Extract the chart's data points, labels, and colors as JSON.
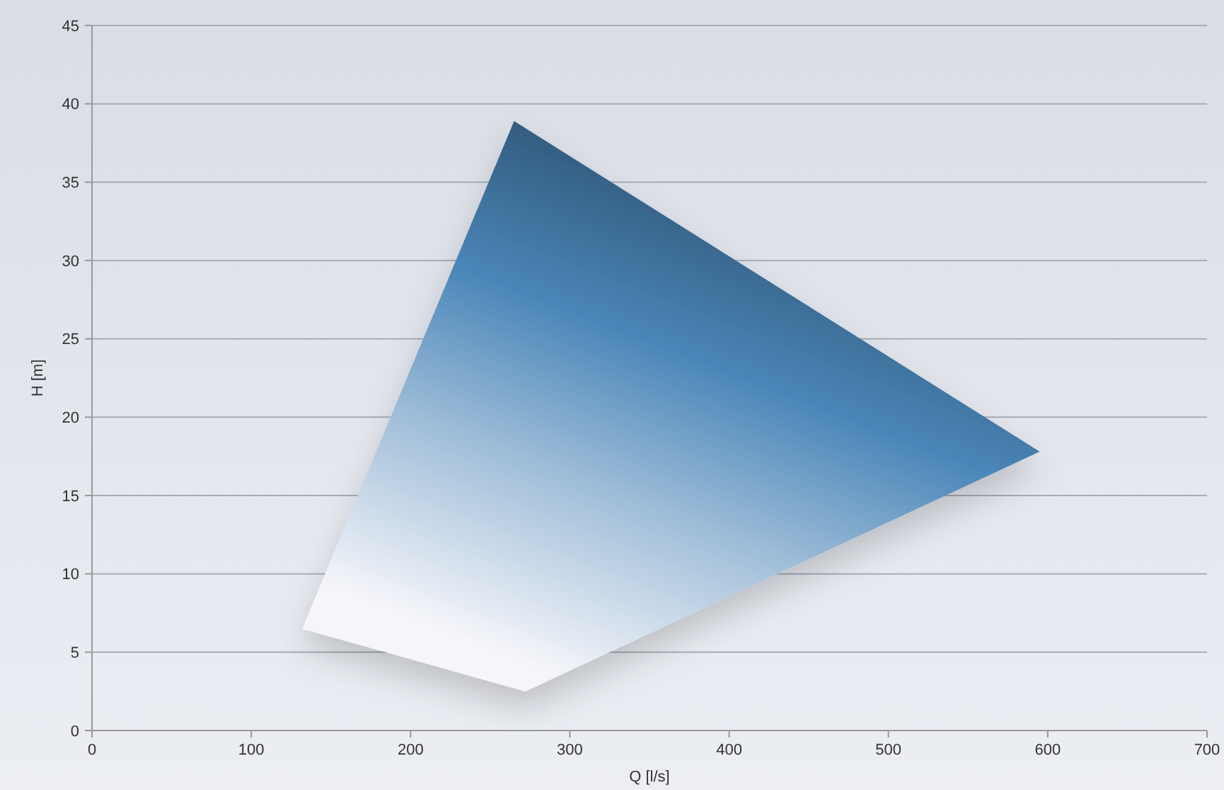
{
  "chart_data": {
    "type": "area",
    "xlabel": "Q [l/s]",
    "ylabel": "H [m]",
    "xlim": [
      0,
      700
    ],
    "ylim": [
      0,
      45
    ],
    "xticks": [
      0,
      100,
      200,
      300,
      400,
      500,
      600,
      700
    ],
    "yticks": [
      0,
      5,
      10,
      15,
      20,
      25,
      30,
      35,
      40,
      45
    ],
    "grid": "y",
    "series": [
      {
        "color": "#4a86b8",
        "x": [
          132,
          265,
          595,
          272,
          132
        ],
        "values": [
          6.5,
          38.9,
          17.8,
          2.5,
          6.5
        ]
      }
    ]
  }
}
